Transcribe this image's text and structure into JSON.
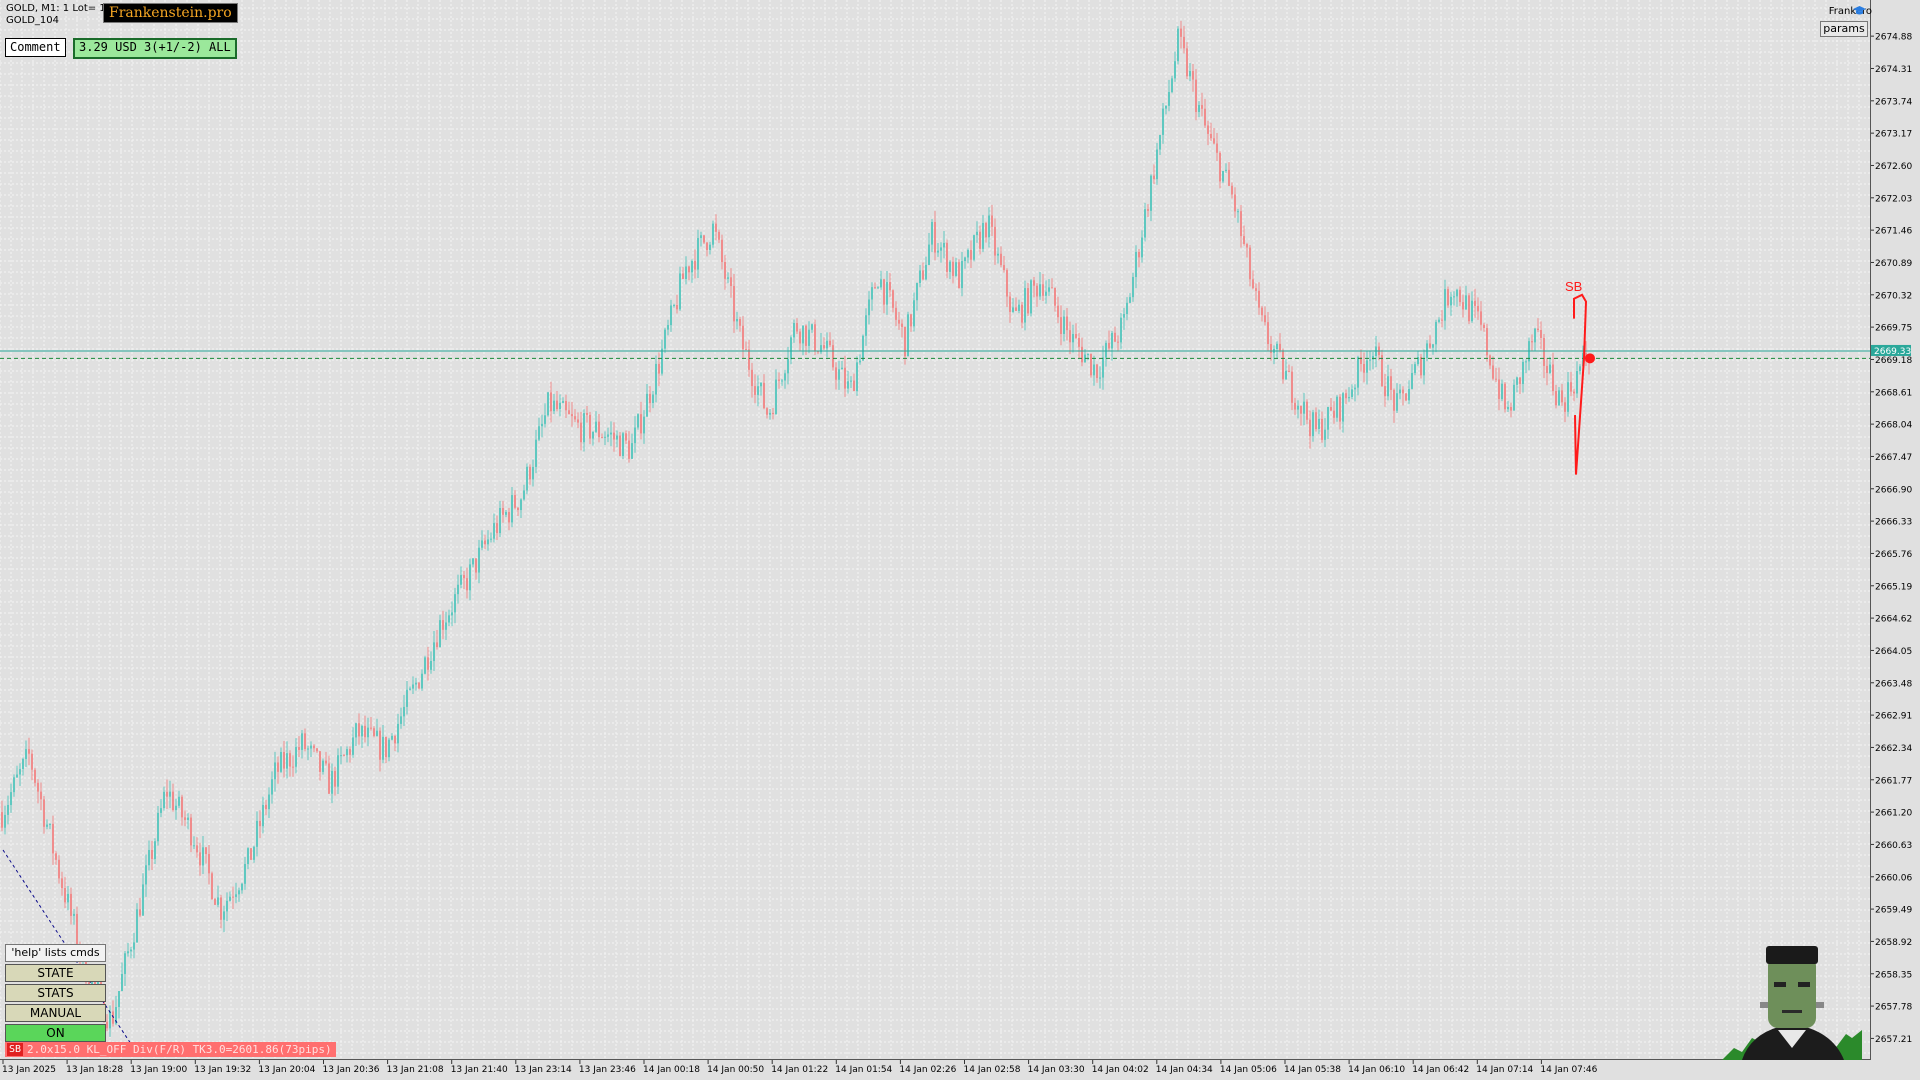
{
  "header": {
    "symbol_line": "GOLD, M1:  1 Lot= 10",
    "account": "GOLD_104",
    "brand": "Frankenstein.pro",
    "top_right": "FrankPro",
    "params_button": "params"
  },
  "comment": {
    "label": "Comment",
    "value": "3.29 USD 3(+1/-2) ALL"
  },
  "panel": {
    "help": "'help' lists cmds",
    "buttons": [
      "STATE",
      "STATS",
      "MANUAL",
      "ON"
    ],
    "status_tag": "SB",
    "status_text": "2.0x15.0 KL_OFF Div(F/R) TK3.0=2601.86(73pips)"
  },
  "colors": {
    "background": "#e0e0e0",
    "bull": "#5fc8c0",
    "bear": "#f08c8c",
    "bid_line": "#2aa89a",
    "ask_line": "#1a8a3a",
    "signal": "#ff1a1a"
  },
  "chart_data": {
    "type": "candlestick",
    "timeframe": "M1",
    "price_axis_ticks": [
      "2674.88",
      "2674.31",
      "2673.74",
      "2673.17",
      "2672.60",
      "2672.03",
      "2671.46",
      "2670.89",
      "2670.32",
      "2669.75",
      "2669.18",
      "2668.61",
      "2668.04",
      "2667.47",
      "2666.90",
      "2666.33",
      "2665.76",
      "2665.19",
      "2664.62",
      "2664.05",
      "2663.48",
      "2662.91",
      "2662.34",
      "2661.77",
      "2661.20",
      "2660.63",
      "2660.06",
      "2659.49",
      "2658.92",
      "2658.35",
      "2657.78",
      "2657.21"
    ],
    "time_axis_labels": [
      "13 Jan 2025",
      "13 Jan 18:28",
      "13 Jan 19:00",
      "13 Jan 19:32",
      "13 Jan 20:04",
      "13 Jan 20:36",
      "13 Jan 21:08",
      "13 Jan 21:40",
      "13 Jan 23:14",
      "13 Jan 23:46",
      "14 Jan 00:18",
      "14 Jan 00:50",
      "14 Jan 01:22",
      "14 Jan 01:54",
      "14 Jan 02:26",
      "14 Jan 02:58",
      "14 Jan 03:30",
      "14 Jan 04:02",
      "14 Jan 04:34",
      "14 Jan 05:06",
      "14 Jan 05:38",
      "14 Jan 06:10",
      "14 Jan 06:42",
      "14 Jan 07:14",
      "14 Jan 07:46"
    ],
    "current_price_label": "2669.33",
    "current_bid": 2669.33,
    "ask_line": 2669.2,
    "y_range": [
      2656.9,
      2675.2
    ],
    "signal_label": "SB",
    "trend_path_prices": [
      2661.2,
      2662.2,
      2660.3,
      2658.5,
      2657.5,
      2659.5,
      2661.6,
      2660.8,
      2659.5,
      2660.3,
      2661.9,
      2662.4,
      2661.7,
      2662.6,
      2662.3,
      2663.3,
      2664.5,
      2665.3,
      2666.2,
      2666.8,
      2668.4,
      2668.0,
      2667.9,
      2667.6,
      2669.1,
      2670.8,
      2671.5,
      2669.5,
      2668.2,
      2669.8,
      2669.4,
      2668.6,
      2670.7,
      2669.5,
      2671.4,
      2670.6,
      2671.6,
      2669.9,
      2670.6,
      2669.6,
      2669.0,
      2669.8,
      2672.3,
      2674.8,
      2673.2,
      2672.0,
      2669.8,
      2668.8,
      2667.9,
      2668.4,
      2669.4,
      2668.3,
      2669.3,
      2670.5,
      2669.8,
      2668.2,
      2669.6,
      2668.4,
      2669.3
    ]
  }
}
